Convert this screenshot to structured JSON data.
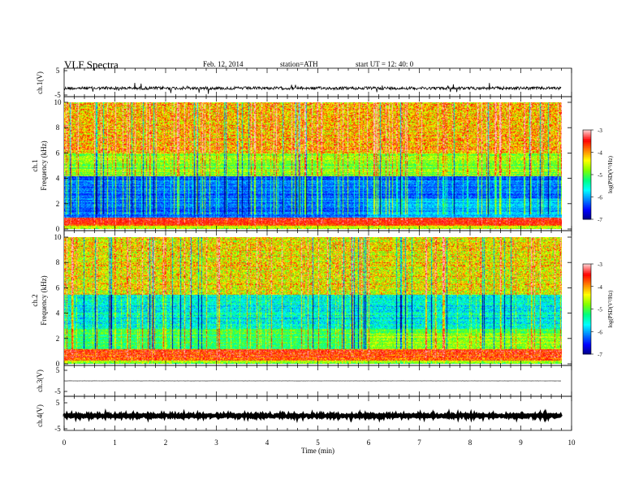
{
  "header": {
    "title": "VLF  Spectra",
    "date": "Feb. 12, 2014",
    "station": "station=ATH",
    "start": "start  UT  =    12: 40: 0"
  },
  "chart_data": {
    "type": "heatmap",
    "xlabel": "Time  (min)",
    "xlim": [
      0,
      10
    ],
    "xticks": [
      "0",
      "1",
      "2",
      "3",
      "4",
      "5",
      "6",
      "7",
      "8",
      "9",
      "10"
    ],
    "data_end_min": 9.8,
    "panels": [
      {
        "kind": "waveform",
        "ylabel": "ch.1(V)",
        "ylim": [
          -5,
          5
        ],
        "yticks": [
          "5",
          "-5"
        ],
        "amplitude_v": 0.6,
        "offset_v": -2.2
      },
      {
        "kind": "spectrogram",
        "channel_label": "ch.1",
        "ylabel": "Frequency  (kHz)",
        "ylim": [
          0,
          10
        ],
        "yticks": [
          "0",
          "2",
          "4",
          "6",
          "8",
          "10"
        ]
      },
      {
        "kind": "spectrogram",
        "channel_label": "ch.2",
        "ylabel": "Frequency  (kHz)",
        "ylim": [
          0,
          10
        ],
        "yticks": [
          "0",
          "2",
          "4",
          "6",
          "8",
          "10"
        ]
      },
      {
        "kind": "waveform",
        "ylabel": "ch.3(V)",
        "ylim": [
          -5,
          5
        ],
        "yticks": [
          "5",
          "-5"
        ],
        "amplitude_v": 0.05,
        "offset_v": 0
      },
      {
        "kind": "waveform",
        "ylabel": "ch.4(V)",
        "ylim": [
          -5,
          5
        ],
        "yticks": [
          "5",
          "-5"
        ],
        "amplitude_v": 0.4,
        "offset_v": 0
      }
    ],
    "colorbars": [
      {
        "label": "log(PSD(V²/Hz)",
        "range": [
          -7,
          -3
        ],
        "ticks": [
          "-3",
          "-4",
          "-5",
          "-6",
          "-7"
        ]
      },
      {
        "label": "log(PSD(V²/Hz)",
        "range": [
          -7,
          -3
        ],
        "ticks": [
          "-3",
          "-4",
          "-5",
          "-6",
          "-7"
        ]
      }
    ],
    "colormap": [
      "#000080",
      "#0000ff",
      "#0080ff",
      "#00ffff",
      "#00ff80",
      "#80ff00",
      "#ffff00",
      "#ff8000",
      "#ff0000",
      "#ffc8c8"
    ],
    "grid": false
  }
}
